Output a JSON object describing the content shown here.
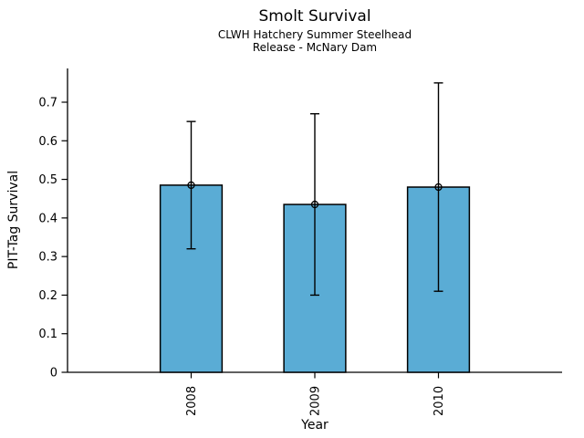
{
  "chart_data": {
    "type": "bar",
    "title": "Smolt Survival",
    "subtitle_line1": "CLWH Hatchery Summer Steelhead",
    "subtitle_line2": "Release - McNary Dam",
    "xlabel": "Year",
    "ylabel": "PIT-Tag Survival",
    "categories": [
      "2008",
      "2009",
      "2010"
    ],
    "values": [
      0.485,
      0.435,
      0.48
    ],
    "error_bars": {
      "lower": [
        0.32,
        0.2,
        0.21
      ],
      "upper": [
        0.65,
        0.67,
        0.75
      ]
    },
    "yticks": [
      0,
      0.1,
      0.2,
      0.3,
      0.4,
      0.5,
      0.6,
      0.7
    ],
    "ytick_labels": [
      "0",
      "0.1",
      "0.2",
      "0.3",
      "0.4",
      "0.5",
      "0.6",
      "0.7"
    ],
    "ylim": [
      0,
      0.7875
    ],
    "xlim": [
      -1,
      3
    ],
    "bar_width": 0.5,
    "marker": "open-circle",
    "grid": false,
    "legend": "none",
    "colors": {
      "bar_fill": "#5AACD5",
      "bar_edge": "#000000",
      "error_bar": "#000000",
      "marker_edge": "#000000",
      "background": "#FFFFFF",
      "text": "#000000"
    }
  }
}
